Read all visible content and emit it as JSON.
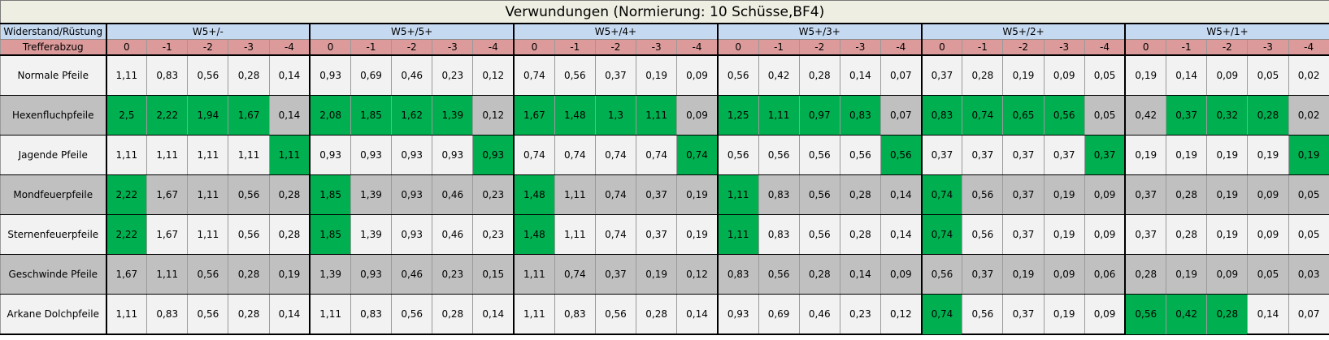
{
  "title": "Verwundungen (Normierung: 10 Schüsse,BF4)",
  "corner_label": "Widerstand/Rüstung",
  "sub_label": "Trefferabzug",
  "groups": [
    "W5+/-",
    "W5+/5+",
    "W5+/4+",
    "W5+/3+",
    "W5+/2+",
    "W5+/1+"
  ],
  "sub_columns": [
    "0",
    "-1",
    "-2",
    "-3",
    "-4"
  ],
  "rows": [
    {
      "label": "Normale Pfeile",
      "shade": "light",
      "values": [
        "1,11",
        "0,83",
        "0,56",
        "0,28",
        "0,14",
        "0,93",
        "0,69",
        "0,46",
        "0,23",
        "0,12",
        "0,74",
        "0,56",
        "0,37",
        "0,19",
        "0,09",
        "0,56",
        "0,42",
        "0,28",
        "0,14",
        "0,07",
        "0,37",
        "0,28",
        "0,19",
        "0,09",
        "0,05",
        "0,19",
        "0,14",
        "0,09",
        "0,05",
        "0,02"
      ],
      "highlight": []
    },
    {
      "label": "Hexenfluchpfeile",
      "shade": "dark",
      "values": [
        "2,5",
        "2,22",
        "1,94",
        "1,67",
        "0,14",
        "2,08",
        "1,85",
        "1,62",
        "1,39",
        "0,12",
        "1,67",
        "1,48",
        "1,3",
        "1,11",
        "0,09",
        "1,25",
        "1,11",
        "0,97",
        "0,83",
        "0,07",
        "0,83",
        "0,74",
        "0,65",
        "0,56",
        "0,05",
        "0,42",
        "0,37",
        "0,32",
        "0,28",
        "0,02"
      ],
      "highlight": [
        0,
        1,
        2,
        3,
        5,
        6,
        7,
        8,
        10,
        11,
        12,
        13,
        15,
        16,
        17,
        18,
        20,
        21,
        22,
        23,
        26,
        27,
        28
      ]
    },
    {
      "label": "Jagende Pfeile",
      "shade": "light",
      "values": [
        "1,11",
        "1,11",
        "1,11",
        "1,11",
        "1,11",
        "0,93",
        "0,93",
        "0,93",
        "0,93",
        "0,93",
        "0,74",
        "0,74",
        "0,74",
        "0,74",
        "0,74",
        "0,56",
        "0,56",
        "0,56",
        "0,56",
        "0,56",
        "0,37",
        "0,37",
        "0,37",
        "0,37",
        "0,37",
        "0,19",
        "0,19",
        "0,19",
        "0,19",
        "0,19"
      ],
      "highlight": [
        4,
        9,
        14,
        19,
        24,
        29
      ]
    },
    {
      "label": "Mondfeuerpfeile",
      "shade": "dark",
      "values": [
        "2,22",
        "1,67",
        "1,11",
        "0,56",
        "0,28",
        "1,85",
        "1,39",
        "0,93",
        "0,46",
        "0,23",
        "1,48",
        "1,11",
        "0,74",
        "0,37",
        "0,19",
        "1,11",
        "0,83",
        "0,56",
        "0,28",
        "0,14",
        "0,74",
        "0,56",
        "0,37",
        "0,19",
        "0,09",
        "0,37",
        "0,28",
        "0,19",
        "0,09",
        "0,05"
      ],
      "highlight": [
        0,
        5,
        10,
        15,
        20
      ]
    },
    {
      "label": "Sternenfeuerpfeile",
      "shade": "light",
      "values": [
        "2,22",
        "1,67",
        "1,11",
        "0,56",
        "0,28",
        "1,85",
        "1,39",
        "0,93",
        "0,46",
        "0,23",
        "1,48",
        "1,11",
        "0,74",
        "0,37",
        "0,19",
        "1,11",
        "0,83",
        "0,56",
        "0,28",
        "0,14",
        "0,74",
        "0,56",
        "0,37",
        "0,19",
        "0,09",
        "0,37",
        "0,28",
        "0,19",
        "0,09",
        "0,05"
      ],
      "highlight": [
        0,
        5,
        10,
        15,
        20
      ]
    },
    {
      "label": "Geschwinde Pfeile",
      "shade": "dark",
      "values": [
        "1,67",
        "1,11",
        "0,56",
        "0,28",
        "0,19",
        "1,39",
        "0,93",
        "0,46",
        "0,23",
        "0,15",
        "1,11",
        "0,74",
        "0,37",
        "0,19",
        "0,12",
        "0,83",
        "0,56",
        "0,28",
        "0,14",
        "0,09",
        "0,56",
        "0,37",
        "0,19",
        "0,09",
        "0,06",
        "0,28",
        "0,19",
        "0,09",
        "0,05",
        "0,03"
      ],
      "highlight": []
    },
    {
      "label": "Arkane Dolchpfeile",
      "shade": "light",
      "values": [
        "1,11",
        "0,83",
        "0,56",
        "0,28",
        "0,14",
        "1,11",
        "0,83",
        "0,56",
        "0,28",
        "0,14",
        "1,11",
        "0,83",
        "0,56",
        "0,28",
        "0,14",
        "0,93",
        "0,69",
        "0,46",
        "0,23",
        "0,12",
        "0,74",
        "0,56",
        "0,37",
        "0,19",
        "0,09",
        "0,56",
        "0,42",
        "0,28",
        "0,14",
        "0,07"
      ],
      "highlight": [
        20,
        25,
        26,
        27
      ]
    }
  ],
  "colors": {
    "title_bg": "#eeeee2",
    "group_header_bg": "#c5d9f1",
    "sub_header_bg": "#dc9a9a",
    "row_light_bg": "#f2f2f2",
    "row_dark_bg": "#c0c0c0",
    "highlight_bg": "#00b050"
  }
}
